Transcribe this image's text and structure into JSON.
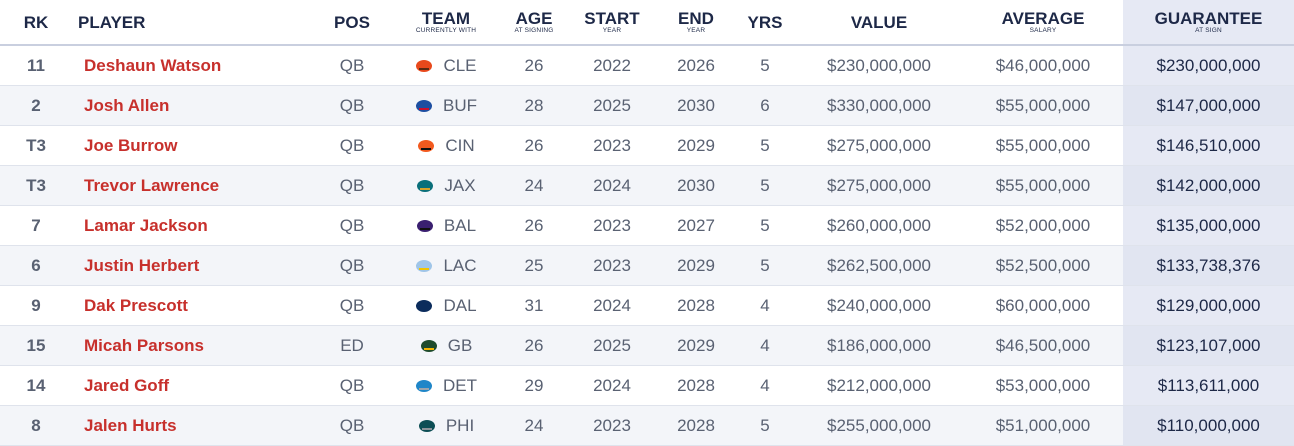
{
  "table": {
    "columns": [
      {
        "label": "RK"
      },
      {
        "label": "PLAYER"
      },
      {
        "label": "POS"
      },
      {
        "label": "TEAM",
        "sublabel": "CURRENTLY WITH"
      },
      {
        "label": "AGE",
        "sublabel": "AT SIGNING"
      },
      {
        "label": "START",
        "sublabel": "YEAR"
      },
      {
        "label": "END",
        "sublabel": "YEAR"
      },
      {
        "label": "YRS"
      },
      {
        "label": "VALUE"
      },
      {
        "label": "AVERAGE",
        "sublabel": "SALARY"
      },
      {
        "label": "GUARANTEE",
        "sublabel": "AT SIGN"
      }
    ],
    "rows": [
      [
        "11",
        "Deshaun Watson",
        "QB",
        "CLE",
        "26",
        "2022",
        "2026",
        "5",
        "$230,000,000",
        "$46,000,000",
        "$230,000,000"
      ],
      [
        "2",
        "Josh Allen",
        "QB",
        "BUF",
        "28",
        "2025",
        "2030",
        "6",
        "$330,000,000",
        "$55,000,000",
        "$147,000,000"
      ],
      [
        "T3",
        "Joe Burrow",
        "QB",
        "CIN",
        "26",
        "2023",
        "2029",
        "5",
        "$275,000,000",
        "$55,000,000",
        "$146,510,000"
      ],
      [
        "T3",
        "Trevor Lawrence",
        "QB",
        "JAX",
        "24",
        "2024",
        "2030",
        "5",
        "$275,000,000",
        "$55,000,000",
        "$142,000,000"
      ],
      [
        "7",
        "Lamar Jackson",
        "QB",
        "BAL",
        "26",
        "2023",
        "2027",
        "5",
        "$260,000,000",
        "$52,000,000",
        "$135,000,000"
      ],
      [
        "6",
        "Justin Herbert",
        "QB",
        "LAC",
        "25",
        "2023",
        "2029",
        "5",
        "$262,500,000",
        "$52,500,000",
        "$133,738,376"
      ],
      [
        "9",
        "Dak Prescott",
        "QB",
        "DAL",
        "31",
        "2024",
        "2028",
        "4",
        "$240,000,000",
        "$60,000,000",
        "$129,000,000"
      ],
      [
        "15",
        "Micah Parsons",
        "ED",
        "GB",
        "26",
        "2025",
        "2029",
        "4",
        "$186,000,000",
        "$46,500,000",
        "$123,107,000"
      ],
      [
        "14",
        "Jared Goff",
        "QB",
        "DET",
        "29",
        "2024",
        "2028",
        "4",
        "$212,000,000",
        "$53,000,000",
        "$113,611,000"
      ],
      [
        "8",
        "Jalen Hurts",
        "QB",
        "PHI",
        "24",
        "2023",
        "2028",
        "5",
        "$255,000,000",
        "$51,000,000",
        "$110,000,000"
      ]
    ]
  }
}
